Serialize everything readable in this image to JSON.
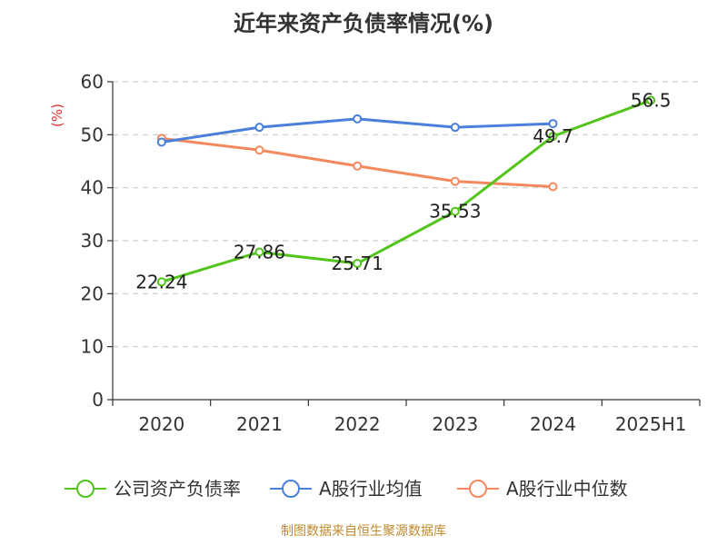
{
  "chart_data": {
    "type": "line",
    "title": "近年来资产负债率情况(%)",
    "ylabel": "(%)",
    "xlabel": "",
    "categories": [
      "2020",
      "2021",
      "2022",
      "2023",
      "2024",
      "2025H1"
    ],
    "ylim": [
      0,
      60
    ],
    "yticks": [
      0,
      10,
      20,
      30,
      40,
      50,
      60
    ],
    "grid": true,
    "legend_position": "bottom",
    "series": [
      {
        "name": "公司资产负债率",
        "color": "#52c41a",
        "show_labels": true,
        "values": [
          22.24,
          27.86,
          25.71,
          35.53,
          49.7,
          56.5
        ],
        "labels": [
          "22.24",
          "27.86",
          "25.71",
          "35.53",
          "49.7",
          "56.5"
        ]
      },
      {
        "name": "A股行业均值",
        "color": "#4a7fdc",
        "show_labels": false,
        "values": [
          48.6,
          51.4,
          53.0,
          51.4,
          52.1,
          null
        ]
      },
      {
        "name": "A股行业中位数",
        "color": "#f5895d",
        "show_labels": false,
        "values": [
          49.3,
          47.1,
          44.1,
          41.2,
          40.2,
          null
        ]
      }
    ]
  },
  "footer": {
    "source": "制图数据来自恒生聚源数据库"
  }
}
